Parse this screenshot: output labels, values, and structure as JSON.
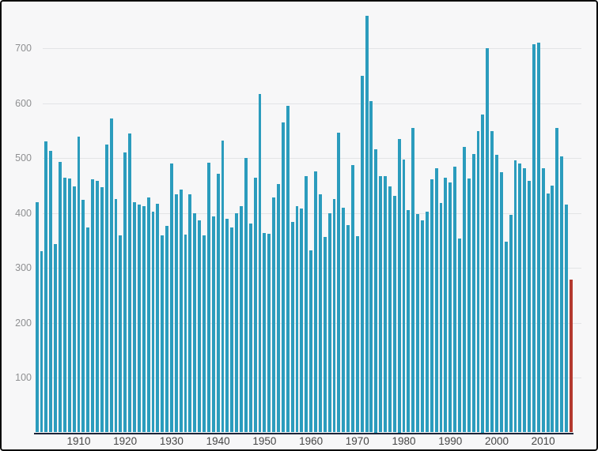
{
  "chart_data": {
    "type": "bar",
    "title": "",
    "xlabel": "",
    "ylabel": "",
    "x": [
      1901,
      1902,
      1903,
      1904,
      1905,
      1906,
      1907,
      1908,
      1909,
      1910,
      1911,
      1912,
      1913,
      1914,
      1915,
      1916,
      1917,
      1918,
      1919,
      1920,
      1921,
      1922,
      1923,
      1924,
      1925,
      1926,
      1927,
      1928,
      1929,
      1930,
      1931,
      1932,
      1933,
      1934,
      1935,
      1936,
      1937,
      1938,
      1939,
      1940,
      1941,
      1942,
      1943,
      1944,
      1945,
      1946,
      1947,
      1948,
      1949,
      1950,
      1951,
      1952,
      1953,
      1954,
      1955,
      1956,
      1957,
      1958,
      1959,
      1960,
      1961,
      1962,
      1963,
      1964,
      1965,
      1966,
      1967,
      1968,
      1969,
      1970,
      1971,
      1972,
      1973,
      1974,
      1975,
      1976,
      1977,
      1978,
      1979,
      1980,
      1981,
      1982,
      1983,
      1984,
      1985,
      1986,
      1987,
      1988,
      1989,
      1990,
      1991,
      1992,
      1993,
      1994,
      1995,
      1996,
      1997,
      1998,
      1999,
      2000,
      2001,
      2002,
      2003,
      2004,
      2005,
      2006,
      2007,
      2008,
      2009,
      2010,
      2011,
      2012,
      2013,
      2014,
      2015,
      2016
    ],
    "values": [
      420,
      330,
      530,
      513,
      344,
      493,
      464,
      463,
      448,
      539,
      424,
      374,
      461,
      459,
      447,
      525,
      573,
      425,
      360,
      510,
      545,
      420,
      416,
      412,
      428,
      402,
      417,
      360,
      376,
      491,
      434,
      443,
      361,
      434,
      400,
      386,
      359,
      492,
      394,
      471,
      532,
      390,
      373,
      400,
      412,
      500,
      381,
      465,
      617,
      364,
      362,
      429,
      453,
      565,
      596,
      384,
      413,
      408,
      467,
      332,
      476,
      434,
      357,
      400,
      426,
      547,
      410,
      378,
      488,
      358,
      650,
      760,
      604,
      517,
      468,
      467,
      449,
      432,
      535,
      498,
      405,
      555,
      398,
      386,
      403,
      461,
      482,
      419,
      465,
      456,
      485,
      353,
      520,
      463,
      508,
      549,
      580,
      700,
      550,
      506,
      474,
      348,
      397,
      496,
      490,
      482,
      459,
      708,
      710,
      482,
      435,
      450,
      555,
      503,
      415,
      278
    ],
    "series_color": "#2b9cbd",
    "highlight": {
      "year": 2016,
      "value": 278,
      "color": "#b4392f"
    },
    "yticks": [
      100,
      200,
      300,
      400,
      500,
      600,
      700
    ],
    "xticks": [
      1910,
      1920,
      1930,
      1940,
      1950,
      1960,
      1970,
      1980,
      1990,
      2000,
      2010
    ],
    "ylim": [
      0,
      775
    ],
    "grid": true,
    "legend": "none"
  },
  "colors": {
    "background": "#f7f7f8",
    "gridline": "#e3e4e6",
    "y_tick_label": "#8f9092",
    "x_tick_label": "#474747",
    "bar": "#2b9cbd",
    "highlight_bar": "#b4392f",
    "baseline": "#1c2438",
    "frame_border": "#0b0b0b"
  }
}
